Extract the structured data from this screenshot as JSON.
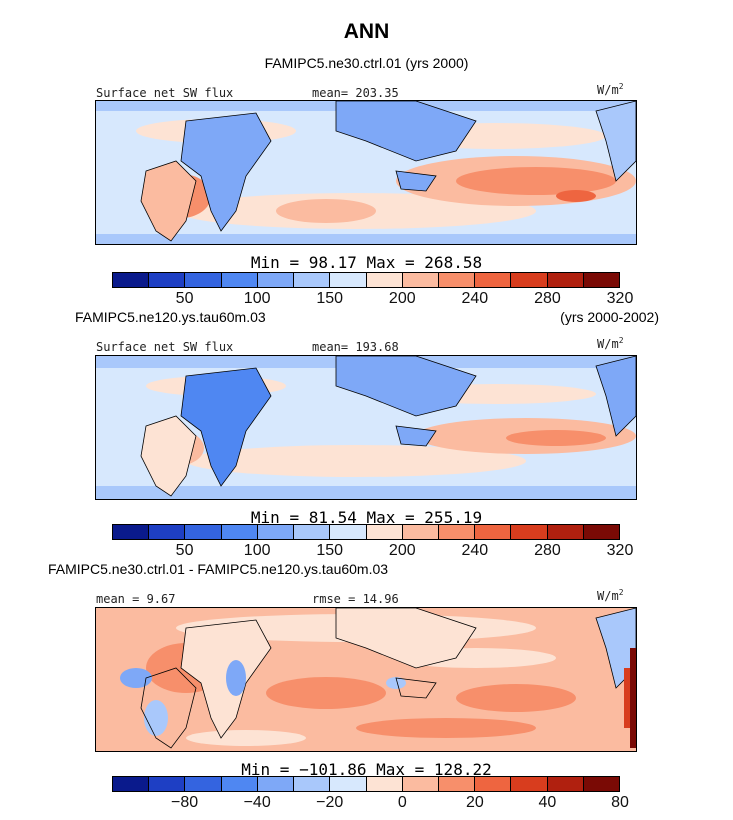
{
  "title": "ANN",
  "colorbars": {
    "sw": [
      "#0a1a8c",
      "#1e3fc4",
      "#3464e0",
      "#4f87f2",
      "#7ea8f7",
      "#a9c8fb",
      "#d7e8fd",
      "#fde3d4",
      "#fbbba0",
      "#f78f6b",
      "#ee6540",
      "#d83d1e",
      "#b0200f",
      "#7a0a05"
    ],
    "diff": [
      "#0a1a8c",
      "#1e3fc4",
      "#3464e0",
      "#4f87f2",
      "#7ea8f7",
      "#a9c8fb",
      "#d7e8fd",
      "#fde3d4",
      "#fbbba0",
      "#f78f6b",
      "#ee6540",
      "#d83d1e",
      "#b0200f",
      "#7a0a05"
    ]
  },
  "panels": [
    {
      "case_name": "FAMIPC5.ne30.ctrl.01 (yrs 2000)",
      "left_label": "Surface net SW flux",
      "stat_label": "mean= 203.35",
      "units": "W/m",
      "units_exp": "2",
      "minmax": "Min =  98.17 Max = 268.58",
      "ticks": [
        "50",
        "100",
        "150",
        "200",
        "240",
        "280",
        "320"
      ]
    },
    {
      "case_name": "FAMIPC5.ne120.ys.tau60m.03",
      "years": "(yrs 2000-2002)",
      "left_label": "Surface net SW flux",
      "stat_label": "mean= 193.68",
      "units": "W/m",
      "units_exp": "2",
      "minmax": "Min =  81.54 Max = 255.19",
      "ticks": [
        "50",
        "100",
        "150",
        "200",
        "240",
        "280",
        "320"
      ]
    },
    {
      "case_name": "FAMIPC5.ne30.ctrl.01 - FAMIPC5.ne120.ys.tau60m.03",
      "left_label": "mean =   9.67",
      "stat_label": "rmse =  14.96",
      "units": "W/m",
      "units_exp": "2",
      "minmax": "Min = −101.86 Max = 128.22",
      "ticks": [
        "−80",
        "−40",
        "−20",
        "0",
        "20",
        "40",
        "80"
      ]
    }
  ],
  "chart_data": [
    {
      "type": "heatmap",
      "title": "FAMIPC5.ne30.ctrl.01 (yrs 2000)",
      "variable": "Surface net SW flux",
      "units": "W/m2",
      "mean": 203.35,
      "min": 98.17,
      "max": 268.58,
      "colorbar_ticks": [
        50,
        100,
        150,
        200,
        240,
        280,
        320
      ]
    },
    {
      "type": "heatmap",
      "title": "FAMIPC5.ne120.ys.tau60m.03 (yrs 2000-2002)",
      "variable": "Surface net SW flux",
      "units": "W/m2",
      "mean": 193.68,
      "min": 81.54,
      "max": 255.19,
      "colorbar_ticks": [
        50,
        100,
        150,
        200,
        240,
        280,
        320
      ]
    },
    {
      "type": "heatmap",
      "title": "FAMIPC5.ne30.ctrl.01 - FAMIPC5.ne120.ys.tau60m.03",
      "units": "W/m2",
      "mean": 9.67,
      "rmse": 14.96,
      "min": -101.86,
      "max": 128.22,
      "colorbar_ticks": [
        -80,
        -40,
        -20,
        0,
        20,
        40,
        80
      ]
    }
  ]
}
